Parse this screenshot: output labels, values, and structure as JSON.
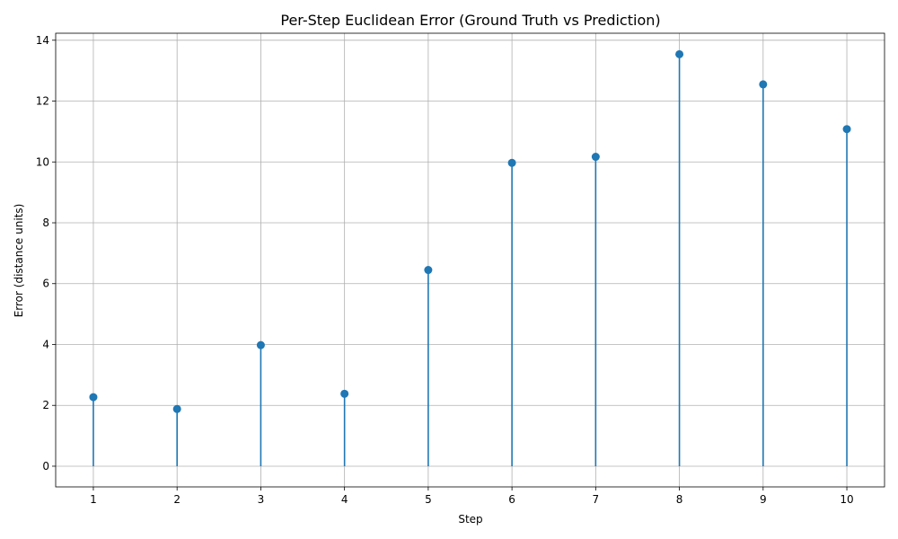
{
  "chart_data": {
    "type": "stem",
    "title": "Per-Step Euclidean Error (Ground Truth vs Prediction)",
    "xlabel": "Step",
    "ylabel": "Error (distance units)",
    "x": [
      1,
      2,
      3,
      4,
      5,
      6,
      7,
      8,
      9,
      10
    ],
    "values": [
      2.27,
      1.88,
      3.98,
      2.38,
      6.45,
      9.97,
      10.17,
      13.54,
      12.55,
      11.08
    ],
    "xlim": [
      0.55,
      10.45
    ],
    "ylim": [
      -0.68,
      14.23
    ],
    "x_ticks": [
      "1",
      "2",
      "3",
      "4",
      "5",
      "6",
      "7",
      "8",
      "9",
      "10"
    ],
    "y_ticks": [
      "0",
      "2",
      "4",
      "6",
      "8",
      "10",
      "12",
      "14"
    ],
    "grid": true,
    "colors": {
      "series": "#1f77b4",
      "grid": "#b0b0b0",
      "axes": "#000000"
    }
  }
}
